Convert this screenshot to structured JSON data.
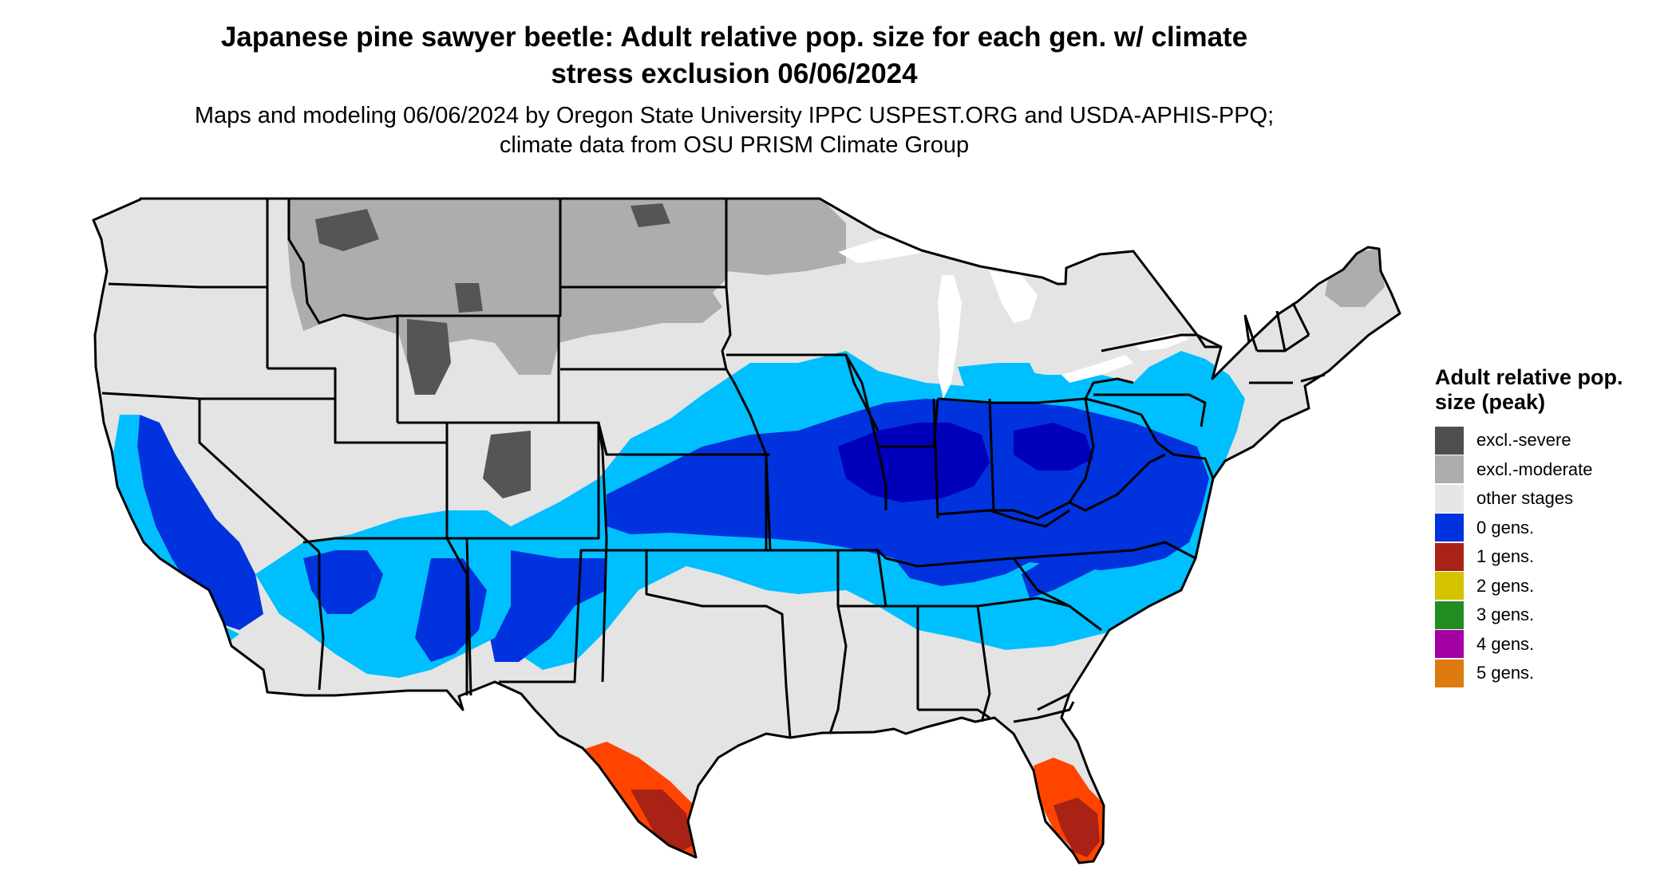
{
  "title": "Japanese pine sawyer beetle: Adult relative pop. size for each gen. w/ climate stress exclusion 06/06/2024",
  "subtitle": "Maps and modeling 06/06/2024 by Oregon State University IPPC USPEST.ORG and USDA-APHIS-PPQ; climate data from OSU PRISM Climate Group",
  "legend": {
    "title": "Adult relative pop. size (peak)",
    "items": [
      {
        "label": "excl.-severe",
        "color": "#4f4f4f"
      },
      {
        "label": "excl.-moderate",
        "color": "#adadad"
      },
      {
        "label": "other stages",
        "color": "#e6e6e6"
      },
      {
        "label": "0 gens.",
        "color": "#0033dd"
      },
      {
        "label": "1 gens.",
        "color": "#a82216"
      },
      {
        "label": "2 gens.",
        "color": "#d6c300"
      },
      {
        "label": "3 gens.",
        "color": "#228b22"
      },
      {
        "label": "4 gens.",
        "color": "#a300a3"
      },
      {
        "label": "5 gens.",
        "color": "#dd7a10"
      }
    ]
  },
  "map_colors": {
    "land": "#e4e4e4",
    "light_blue": "#00bfff",
    "medium_blue": "#0033dd",
    "dark_blue": "#0000bb",
    "gray_moderate": "#adadad",
    "gray_severe": "#555555",
    "red_orange": "#ff4400",
    "dark_red": "#a82216",
    "border": "#000000"
  }
}
